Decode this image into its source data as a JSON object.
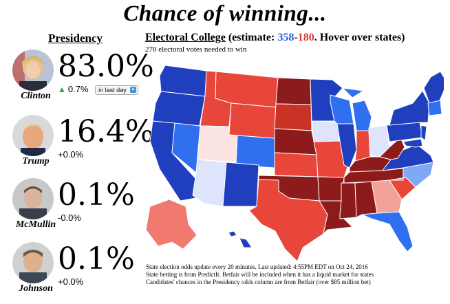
{
  "header": {
    "title": "Chance of winning..."
  },
  "presidency": {
    "heading": "Presidency",
    "candidates": [
      {
        "name": "Clinton",
        "percent": "83.0%",
        "change": "0.7%",
        "change_direction": "up",
        "period": "in last day"
      },
      {
        "name": "Trump",
        "percent": "16.4%",
        "change": "+0.0%"
      },
      {
        "name": "McMullin",
        "percent": "0.1%",
        "change": "-0.0%"
      },
      {
        "name": "Johnson",
        "percent": "0.1%",
        "change": "+0.0%"
      }
    ]
  },
  "electoral": {
    "heading": "Electoral College",
    "estimate_prefix": "(estimate: ",
    "dem_votes": "358",
    "dash": "-",
    "rep_votes": "180",
    "estimate_suffix": ". Hover over states)",
    "needed": "270 electoral votes needed to win"
  },
  "notes": [
    "State election odds update every 20 minutes. Last updated: 4:55PM EDT on Oct 24, 2016",
    "State betting is from PredictIt. Betfair will be included when it has a liquid market for states",
    "Candidates' chances in the Presidency odds column are from Betfair (over $85 million bet)"
  ],
  "colors": {
    "dem_text": "#2a5bd7",
    "rep_text": "#d9372d",
    "safe_dem": "#1f3fbf",
    "likely_dem": "#2f6ff0",
    "lean_dem": "#7fa8f5",
    "tossup_dem": "#dde4fb",
    "safe_rep": "#8e1b1b",
    "likely_rep": "#c93326",
    "lean_rep": "#e8463a",
    "tossup_rep": "#f2a29a",
    "pale_rep": "#fbe4e2",
    "up_arrow": "#2e9e3a"
  },
  "icons": [
    "up-arrow-icon",
    "dropdown-arrow-icon"
  ]
}
